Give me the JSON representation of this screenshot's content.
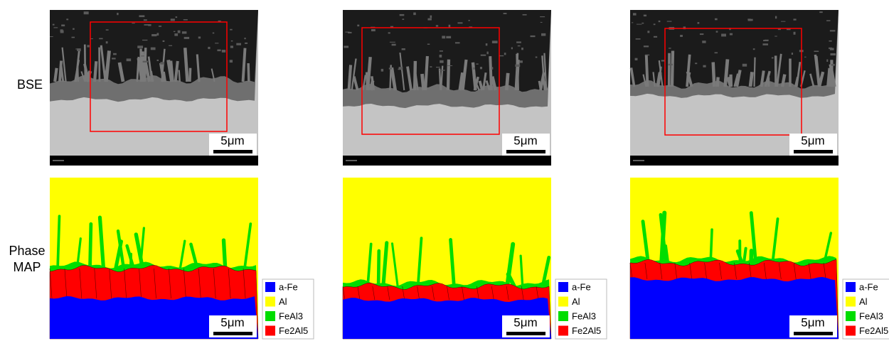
{
  "row_labels": {
    "bse": "BSE",
    "phase_map": [
      "Phase",
      "MAP"
    ]
  },
  "scale_bar": "5μm",
  "legend": [
    {
      "label": "a-Fe",
      "color": "#0000ff"
    },
    {
      "label": "Al",
      "color": "#ffff00"
    },
    {
      "label": "FeAl3",
      "color": "#00dd00"
    },
    {
      "label": "Fe2Al5",
      "color": "#ff0000"
    }
  ]
}
